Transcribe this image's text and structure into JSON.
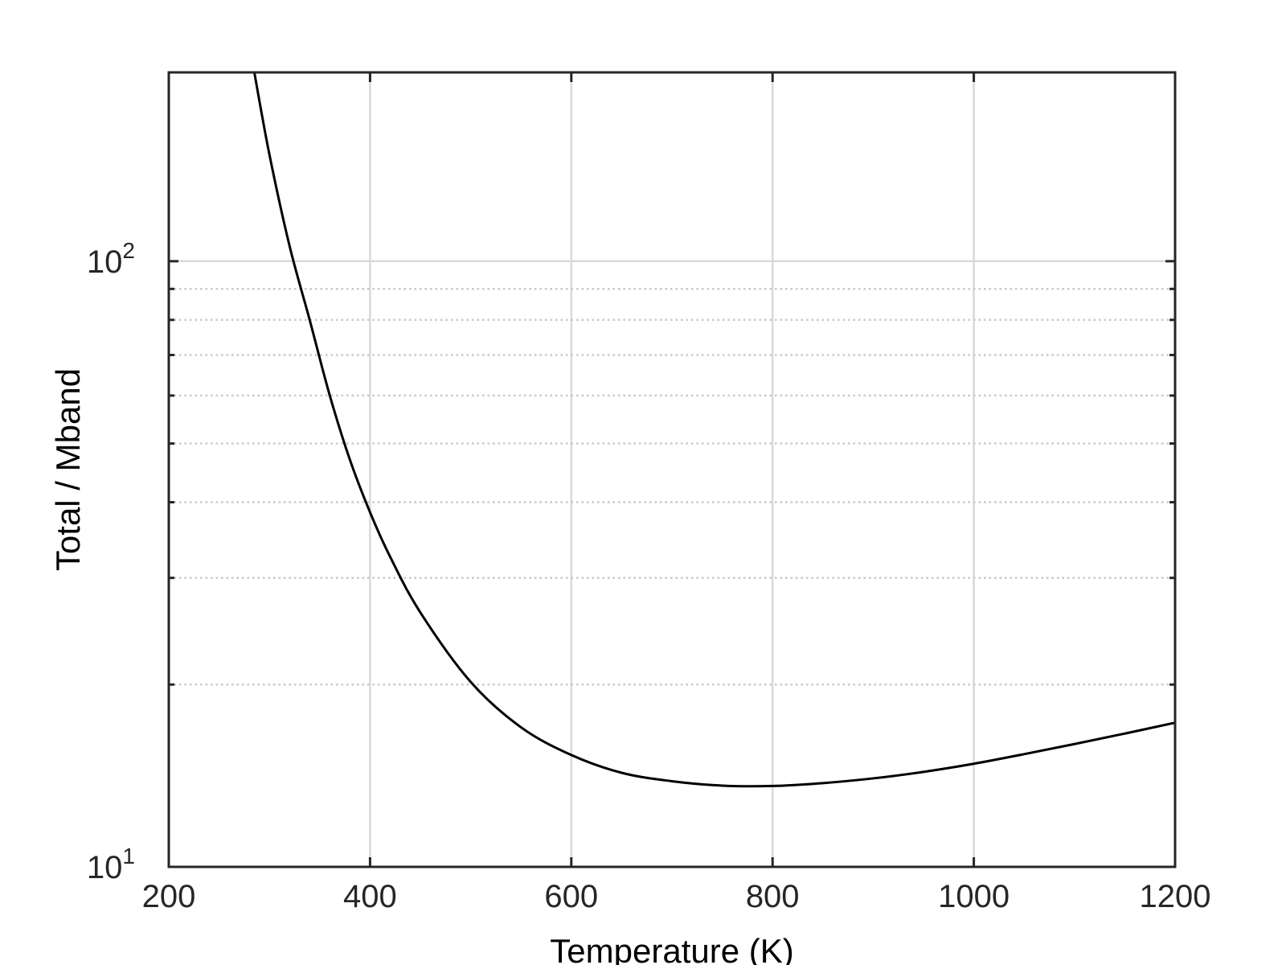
{
  "chart_data": {
    "type": "line",
    "title": "",
    "xlabel": "Temperature (K)",
    "ylabel": "Total / Mband",
    "xlim": [
      200,
      1200
    ],
    "ylim": [
      10,
      205
    ],
    "x_scale": "linear",
    "y_scale": "log",
    "x_ticks": [
      200,
      400,
      600,
      800,
      1000,
      1200
    ],
    "x_tick_labels": [
      "200",
      "400",
      "600",
      "800",
      "1000",
      "1200"
    ],
    "y_major_ticks": [
      10,
      100
    ],
    "y_tick_labels": [
      {
        "base": "10",
        "exp": "1"
      },
      {
        "base": "10",
        "exp": "2"
      }
    ],
    "y_minor_gridlines": [
      20,
      30,
      40,
      50,
      60,
      70,
      80,
      90
    ],
    "grid": true,
    "minor_grid": true,
    "legend": "none",
    "colors": {
      "line": "#000000",
      "axes": "#262626",
      "grid": "#d9d9d9",
      "minor_grid": "#c8c8c8"
    },
    "series": [
      {
        "x": [
          285,
          300,
          320,
          340,
          360,
          380,
          400,
          420,
          450,
          500,
          550,
          600,
          650,
          700,
          750,
          800,
          850,
          900,
          950,
          1000,
          1050,
          1100,
          1150,
          1200
        ],
        "y": [
          205,
          150,
          106,
          80,
          60,
          47,
          38.5,
          32.5,
          26.3,
          20.2,
          17.0,
          15.3,
          14.3,
          13.85,
          13.62,
          13.6,
          13.75,
          14.0,
          14.35,
          14.8,
          15.35,
          15.95,
          16.6,
          17.3
        ]
      }
    ]
  }
}
